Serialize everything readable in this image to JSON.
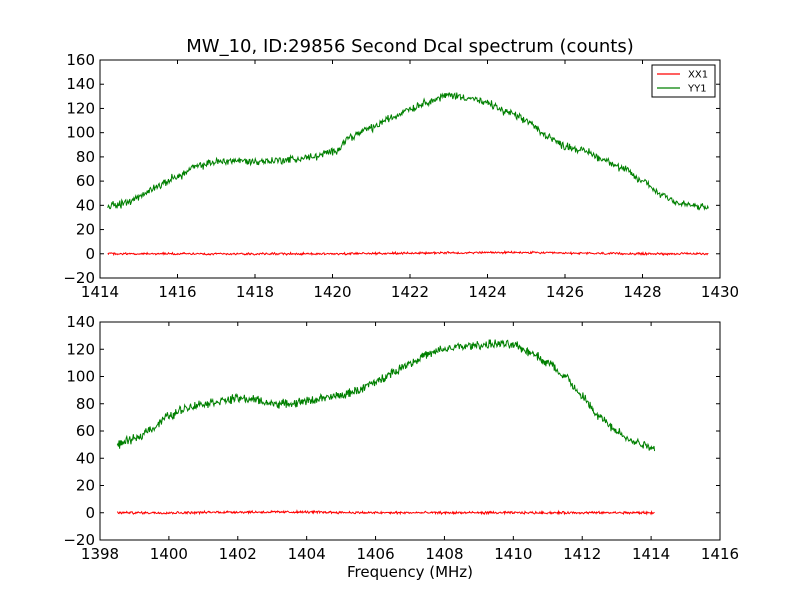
{
  "figure": {
    "title": "MW_10, ID:29856 Second Dcal spectrum (counts)"
  },
  "chart_data": [
    {
      "type": "line",
      "title": "MW_10, ID:29856 Second Dcal spectrum (counts)",
      "xlabel": "",
      "ylabel": "",
      "xlim": [
        1414,
        1430
      ],
      "ylim": [
        -20,
        160
      ],
      "xticks": [
        1414,
        1416,
        1418,
        1420,
        1422,
        1424,
        1426,
        1428,
        1430
      ],
      "yticks": [
        -20,
        0,
        20,
        40,
        60,
        80,
        100,
        120,
        140,
        160
      ],
      "grid": false,
      "legend": {
        "placement": "top-right",
        "entries": [
          "XX1",
          "YY1"
        ]
      },
      "series": [
        {
          "name": "XX1",
          "color": "#ff0000",
          "x": [
            1414.2,
            1416,
            1418,
            1420,
            1422,
            1423,
            1424,
            1425,
            1426,
            1428,
            1429.7
          ],
          "values": [
            0,
            0,
            0,
            0,
            0.5,
            0.8,
            1,
            1,
            0.5,
            0,
            0
          ]
        },
        {
          "name": "YY1",
          "color": "#008000",
          "x": [
            1414.2,
            1414.6,
            1415,
            1415.5,
            1416,
            1416.5,
            1417,
            1417.5,
            1418,
            1418.5,
            1419,
            1419.5,
            1420,
            1420.5,
            1421,
            1421.5,
            1422,
            1422.5,
            1423,
            1423.5,
            1424,
            1424.5,
            1425,
            1425.5,
            1426,
            1426.5,
            1427,
            1427.5,
            1428,
            1428.5,
            1429,
            1429.7
          ],
          "values": [
            40,
            41,
            47,
            56,
            64,
            72,
            76,
            77,
            76,
            77,
            78,
            80,
            84,
            97,
            104,
            112,
            120,
            126,
            131,
            129,
            124,
            117,
            110,
            98,
            89,
            85,
            78,
            70,
            60,
            49,
            41,
            38
          ]
        }
      ]
    },
    {
      "type": "line",
      "title": "",
      "xlabel": "Frequency (MHz)",
      "ylabel": "",
      "xlim": [
        1398,
        1416
      ],
      "ylim": [
        -20,
        140
      ],
      "xticks": [
        1398,
        1400,
        1402,
        1404,
        1406,
        1408,
        1410,
        1412,
        1414,
        1416
      ],
      "yticks": [
        -20,
        0,
        20,
        40,
        60,
        80,
        100,
        120,
        140
      ],
      "grid": false,
      "series": [
        {
          "name": "XX1",
          "color": "#ff0000",
          "x": [
            1398.5,
            1400,
            1402,
            1404,
            1406,
            1408,
            1410,
            1412,
            1414.1
          ],
          "values": [
            0,
            0,
            0.5,
            0.5,
            0,
            0,
            0,
            0,
            0
          ]
        },
        {
          "name": "YY1",
          "color": "#008000",
          "x": [
            1398.5,
            1399,
            1399.5,
            1400,
            1400.5,
            1401,
            1401.5,
            1402,
            1402.5,
            1403,
            1403.5,
            1404,
            1404.5,
            1405,
            1405.5,
            1406,
            1406.5,
            1407,
            1407.5,
            1408,
            1408.5,
            1409,
            1409.5,
            1410,
            1410.5,
            1411,
            1411.5,
            1412,
            1412.5,
            1413,
            1413.5,
            1414.1
          ],
          "values": [
            50,
            54,
            62,
            71,
            77,
            80,
            82,
            84,
            83,
            80,
            80,
            82,
            84,
            86,
            90,
            96,
            103,
            110,
            116,
            120,
            122,
            123,
            124,
            123,
            118,
            110,
            100,
            85,
            70,
            60,
            52,
            48
          ]
        }
      ]
    }
  ]
}
